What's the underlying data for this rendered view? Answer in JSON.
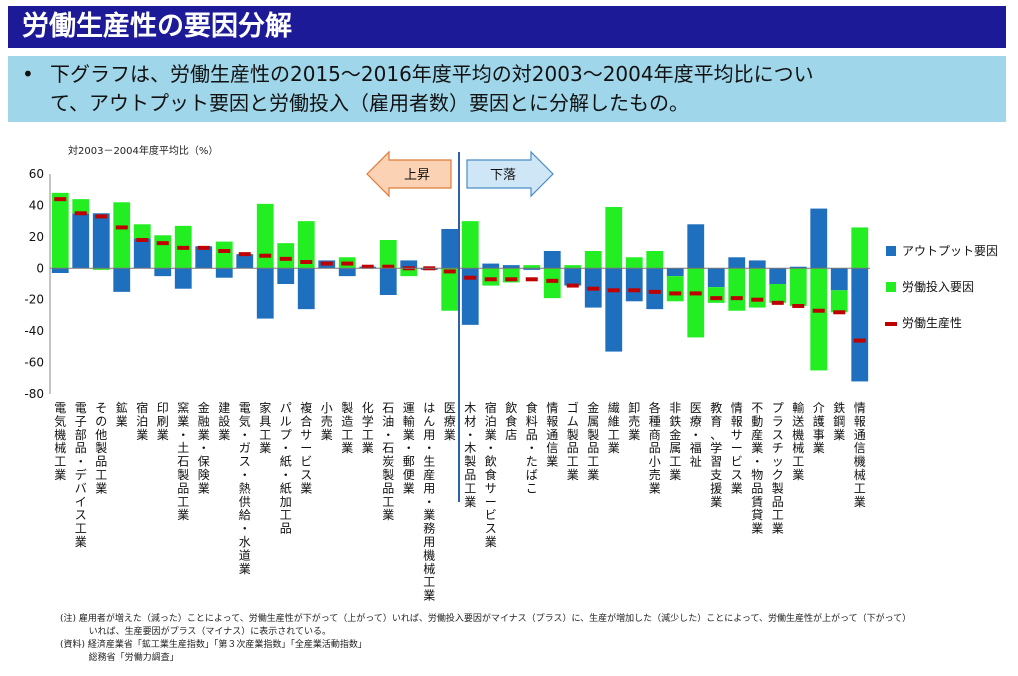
{
  "header": {
    "title": "労働生産性の要因分解",
    "bullet": "•",
    "description_line1": "下グラフは、労働生産性の2015～2016年度平均の対2003～2004年度平均比につい",
    "description_line2": "て、アウトプット要因と労働投入（雇用者数）要因とに分解したもの。"
  },
  "colors": {
    "output": "#1f6fbf",
    "labor": "#22ee22",
    "productivity": "#c00000",
    "arrow_fill": "#fbd3b4",
    "arrow_stroke": "#e07b39",
    "arrow2_fill": "#cfe6f6",
    "arrow2_stroke": "#4a8cc8",
    "divider": "#2e5fa8"
  },
  "chart_data": {
    "type": "bar",
    "ylabel": "対2003－2004年度平均比（%）",
    "ylim": [
      -80,
      60
    ],
    "yticks": [
      60,
      40,
      20,
      0,
      -20,
      -40,
      -60,
      -80
    ],
    "arrows": {
      "up": "上昇",
      "down": "下落"
    },
    "legend": [
      "アウトプット要因",
      "労働投入要因",
      "労働生産性"
    ],
    "categories": [
      "電気機械工業",
      "電子部品・デバイス工業",
      "その他製品工業",
      "鉱業",
      "宿泊業",
      "印刷業",
      "窯業・土石製品工業",
      "金融業・保険業",
      "建設業",
      "電気・ガス・熱供給・水道業",
      "家具工業",
      "パルプ・紙・紙加工品",
      "複合サービス業",
      "小売業",
      "製造工業",
      "化学工業",
      "石油・石炭製品工業",
      "運輸業・郵便業",
      "はん用・生産用・業務用機械工業",
      "医療業",
      "木材・木製品工業",
      "宿泊業・飲食サービス業",
      "飲食店",
      "食料品・たばこ",
      "情報通信業",
      "ゴム製品工業",
      "金属製品工業",
      "繊維工業",
      "卸売業",
      "各種商品小売業",
      "非鉄金属工業",
      "医療・福祉",
      "教育、学習支援業",
      "情報サービス業",
      "不動産業・物品賃貸業",
      "プラスチック製品工業",
      "輸送機械工業",
      "介護事業",
      "鉄鋼業",
      "情報通信機械工業"
    ],
    "series": [
      {
        "name": "アウトプット要因",
        "values": [
          -3,
          35,
          35,
          -15,
          19,
          -5,
          -13,
          14,
          -6,
          9,
          -32,
          -10,
          -26,
          5,
          -5,
          1,
          -17,
          5,
          -1,
          25,
          -36,
          3,
          2,
          -1,
          11,
          -11,
          -25,
          -53,
          -21,
          -26,
          -5,
          28,
          -12,
          7,
          5,
          -10,
          1,
          38,
          -14,
          -72
        ]
      },
      {
        "name": "労働投入要因",
        "values": [
          48,
          9,
          -1,
          42,
          9,
          21,
          27,
          0,
          17,
          0,
          41,
          16,
          30,
          0,
          7,
          0,
          18,
          -5,
          0,
          -27,
          30,
          -11,
          -9,
          2,
          -19,
          2,
          11,
          39,
          7,
          11,
          -16,
          -44,
          -10,
          -27,
          -25,
          -12,
          -24,
          -65,
          -14,
          26
        ]
      },
      {
        "name": "労働生産性",
        "values": [
          44,
          35,
          33,
          26,
          18,
          16,
          13,
          13,
          11,
          9,
          8,
          6,
          4,
          3,
          3,
          1,
          1,
          0,
          0,
          -2,
          -6,
          -7,
          -7,
          -7,
          -8,
          -11,
          -13,
          -14,
          -14,
          -15,
          -16,
          -16,
          -19,
          -19,
          -20,
          -22,
          -24,
          -27,
          -28,
          -46
        ]
      }
    ]
  },
  "notes": {
    "line1": "(注) 雇用者が増えた（減った）ことによって、労働生産性が下がって（上がって）いれば、労働投入要因がマイナス（プラス）に、生産が増加した（減少した）ことによって、労働生産性が上がって（下がって）",
    "line2": "          いれば、生産要因がプラス（マイナス）に表示されている。",
    "line3": "(資料) 経済産業省「鉱工業生産指数」「第３次産業指数」「全産業活動指数」",
    "line4": "          総務省「労働力調査」"
  }
}
